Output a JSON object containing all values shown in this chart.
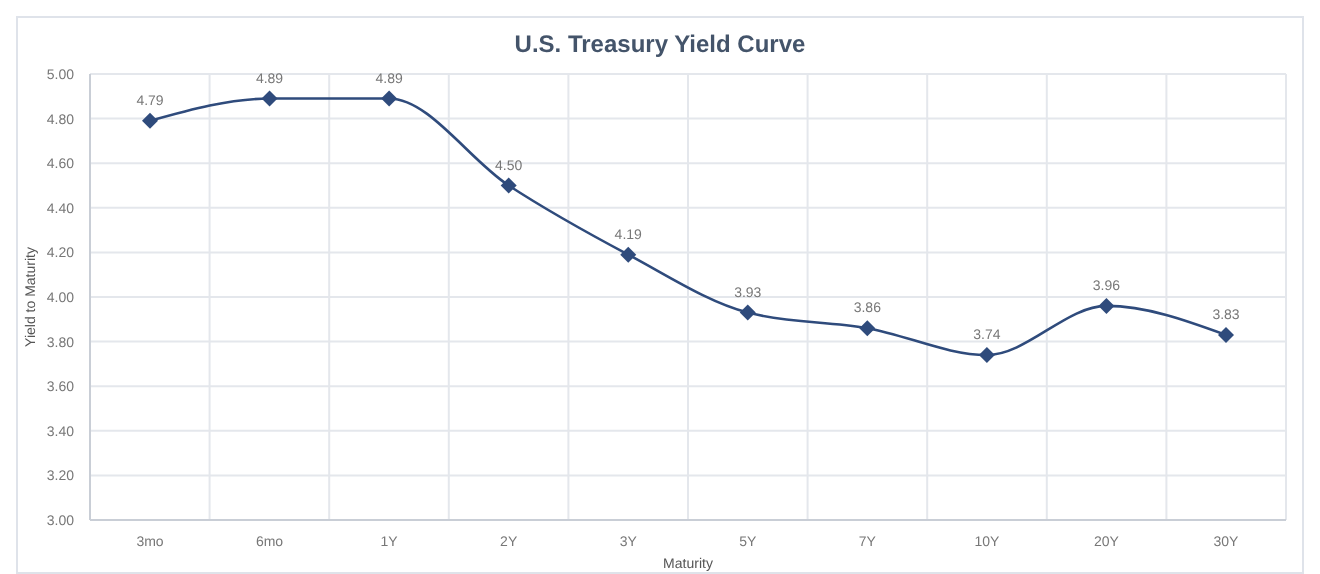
{
  "chart_data": {
    "type": "line",
    "title": "U.S. Treasury Yield Curve",
    "xlabel": "Maturity",
    "ylabel": "Yield to Maturity",
    "categories": [
      "3mo",
      "6mo",
      "1Y",
      "2Y",
      "3Y",
      "5Y",
      "7Y",
      "10Y",
      "20Y",
      "30Y"
    ],
    "values": [
      4.79,
      4.89,
      4.89,
      4.5,
      4.19,
      3.93,
      3.86,
      3.74,
      3.96,
      3.83
    ],
    "color": "#2f4b7c",
    "ylim": [
      3,
      5
    ],
    "yticks": [
      {
        "value": 3,
        "label": "3.00"
      },
      {
        "value": 3.2,
        "label": "3.20"
      },
      {
        "value": 3.4,
        "label": "3.40"
      },
      {
        "value": 3.6,
        "label": "3.60"
      },
      {
        "value": 3.8,
        "label": "3.80"
      },
      {
        "value": 4,
        "label": "4.00"
      },
      {
        "value": 4.2,
        "label": "4.20"
      },
      {
        "value": 4.4,
        "label": "4.40"
      },
      {
        "value": 4.6,
        "label": "4.60"
      },
      {
        "value": 4.8,
        "label": "4.80"
      },
      {
        "value": 5,
        "label": "5.00"
      }
    ],
    "value_labels": [
      "4.79",
      "4.89",
      "4.89",
      "4.50",
      "4.19",
      "3.93",
      "3.86",
      "3.74",
      "3.96",
      "3.83"
    ],
    "grid": true,
    "marker": "diamond"
  }
}
